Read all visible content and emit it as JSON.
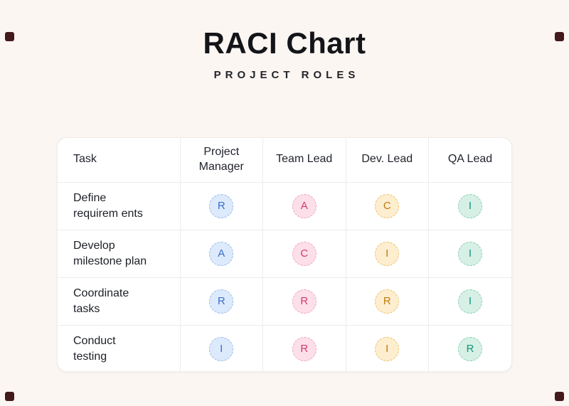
{
  "header": {
    "title": "RACI Chart",
    "subtitle": "PROJECT ROLES"
  },
  "table": {
    "columns": [
      "Task",
      "Project Manager",
      "Team Lead",
      "Dev. Lead",
      "QA Lead"
    ],
    "rows": [
      {
        "task": "Define\nrequirem ents",
        "cells": [
          {
            "letter": "R",
            "color": "blue"
          },
          {
            "letter": "A",
            "color": "pink"
          },
          {
            "letter": "C",
            "color": "amber"
          },
          {
            "letter": "I",
            "color": "teal"
          }
        ]
      },
      {
        "task": "Develop\nmilestone plan",
        "cells": [
          {
            "letter": "A",
            "color": "blue"
          },
          {
            "letter": "C",
            "color": "pink"
          },
          {
            "letter": "I",
            "color": "amber"
          },
          {
            "letter": "I",
            "color": "teal"
          }
        ]
      },
      {
        "task": "Coordinate\ntasks",
        "cells": [
          {
            "letter": "R",
            "color": "blue"
          },
          {
            "letter": "R",
            "color": "pink"
          },
          {
            "letter": "R",
            "color": "amber"
          },
          {
            "letter": "I",
            "color": "teal"
          }
        ]
      },
      {
        "task": "Conduct\ntesting",
        "cells": [
          {
            "letter": "I",
            "color": "blue"
          },
          {
            "letter": "R",
            "color": "pink"
          },
          {
            "letter": "I",
            "color": "amber"
          },
          {
            "letter": "R",
            "color": "teal"
          }
        ]
      }
    ]
  },
  "colors": {
    "background": "#fbf6f2",
    "card": "#ffffff",
    "corner_mark": "#42191c",
    "blue": "#3b6ec8",
    "pink": "#d23a6e",
    "amber": "#c07c0c",
    "teal": "#0f9679"
  },
  "chart_data": {
    "type": "table",
    "title": "RACI Chart",
    "subtitle": "PROJECT ROLES",
    "columns": [
      "Task",
      "Project Manager",
      "Team Lead",
      "Dev. Lead",
      "QA Lead"
    ],
    "rows": [
      [
        "Define requirem ents",
        "R",
        "A",
        "C",
        "I"
      ],
      [
        "Develop milestone plan",
        "A",
        "C",
        "I",
        "I"
      ],
      [
        "Coordinate tasks",
        "R",
        "R",
        "R",
        "I"
      ],
      [
        "Conduct testing",
        "I",
        "R",
        "I",
        "R"
      ]
    ],
    "legend": {
      "R": "blue",
      "A": "pink-when-col2-blue-when-col1",
      "note": "badge color is fixed per column: Project Manager=blue, Team Lead=pink, Dev. Lead=amber, QA Lead=teal"
    }
  }
}
